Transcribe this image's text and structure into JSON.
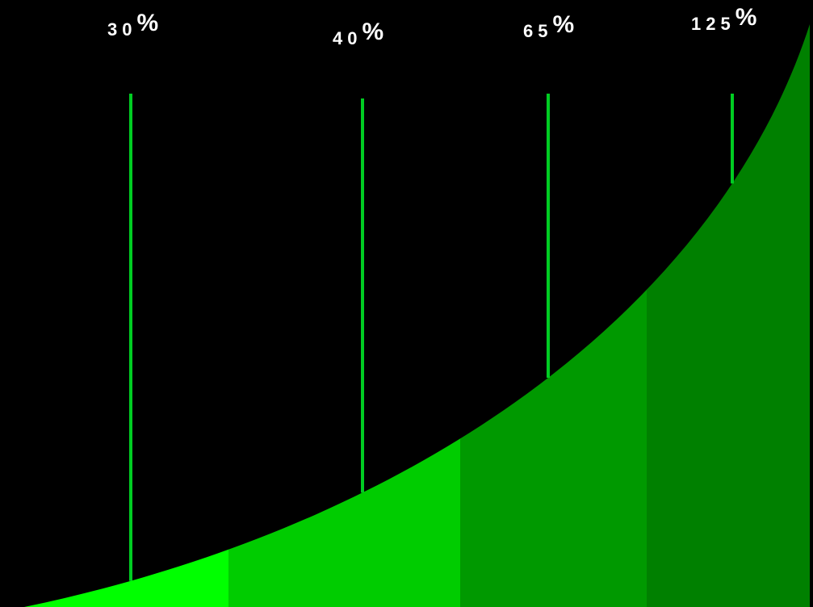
{
  "chart_data": {
    "type": "area",
    "title": "",
    "xlabel": "",
    "ylabel": "",
    "grid": false,
    "legend": "none",
    "labels": [
      {
        "number": "30",
        "sign": "%"
      },
      {
        "number": "40",
        "sign": "%"
      },
      {
        "number": "65",
        "sign": "%"
      },
      {
        "number": "125",
        "sign": "%"
      }
    ],
    "values": [
      30,
      40,
      65,
      125
    ],
    "segment_colors": [
      "#00ff00",
      "#00cc00",
      "#009900",
      "#008000"
    ],
    "marker_line_color": "#00cc22",
    "background_color": "#000000",
    "label_color": "#ffffff"
  }
}
